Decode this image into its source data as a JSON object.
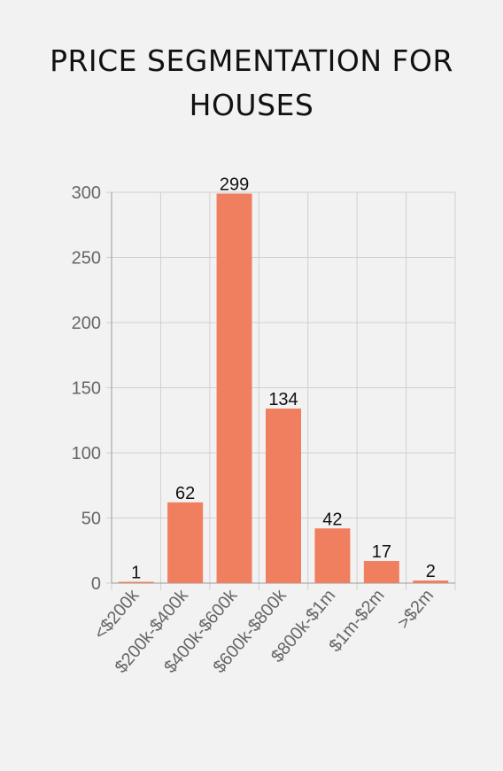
{
  "chart_data": {
    "type": "bar",
    "title_lines": [
      "PRICE SEGMENTATION FOR",
      "HOUSES"
    ],
    "categories": [
      "<$200k",
      "$200k-$400k",
      "$400k-$600k",
      "$600k-$800k",
      "$800k-$1m",
      "$1m-$2m",
      ">$2m"
    ],
    "values": [
      1,
      62,
      299,
      134,
      42,
      17,
      2
    ],
    "ylim": [
      0,
      300
    ],
    "yticks": [
      0,
      50,
      100,
      150,
      200,
      250,
      300
    ],
    "xlabel": "",
    "ylabel": "",
    "grid": true,
    "legend": "none",
    "bar_color": "#ef7f5f"
  }
}
